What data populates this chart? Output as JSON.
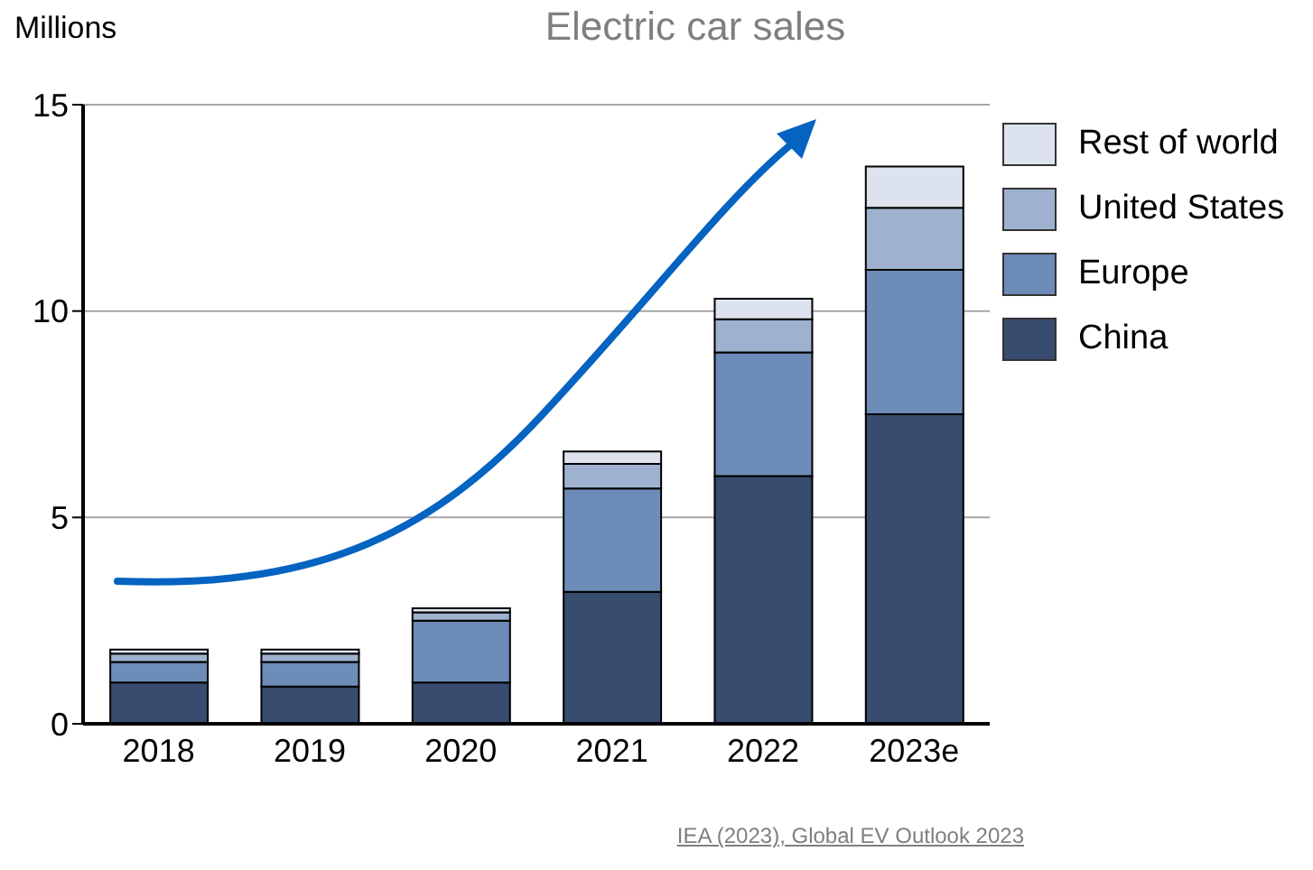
{
  "chart_data": {
    "type": "bar",
    "title": "Electric car sales",
    "ylabel": "Millions",
    "categories": [
      "2018",
      "2019",
      "2020",
      "2021",
      "2022",
      "2023e"
    ],
    "series": [
      {
        "name": "China",
        "color": "#374c6e",
        "values": [
          1.0,
          0.9,
          1.0,
          3.2,
          6.0,
          7.5
        ]
      },
      {
        "name": "Europe",
        "color": "#6d8cb8",
        "values": [
          0.5,
          0.6,
          1.5,
          2.5,
          3.0,
          3.5
        ]
      },
      {
        "name": "United States",
        "color": "#9eb1cf",
        "values": [
          0.2,
          0.2,
          0.2,
          0.6,
          0.8,
          1.5
        ]
      },
      {
        "name": "Rest of world",
        "color": "#dde3ee",
        "values": [
          0.1,
          0.1,
          0.1,
          0.3,
          0.5,
          1.0
        ]
      }
    ],
    "stacked": true,
    "ylim": [
      0,
      15
    ],
    "yticks": [
      0,
      5,
      10,
      15
    ],
    "grid": "y",
    "legend": "top right",
    "annotations": [
      "IEA (2023), Global EV Outlook 2023"
    ]
  }
}
